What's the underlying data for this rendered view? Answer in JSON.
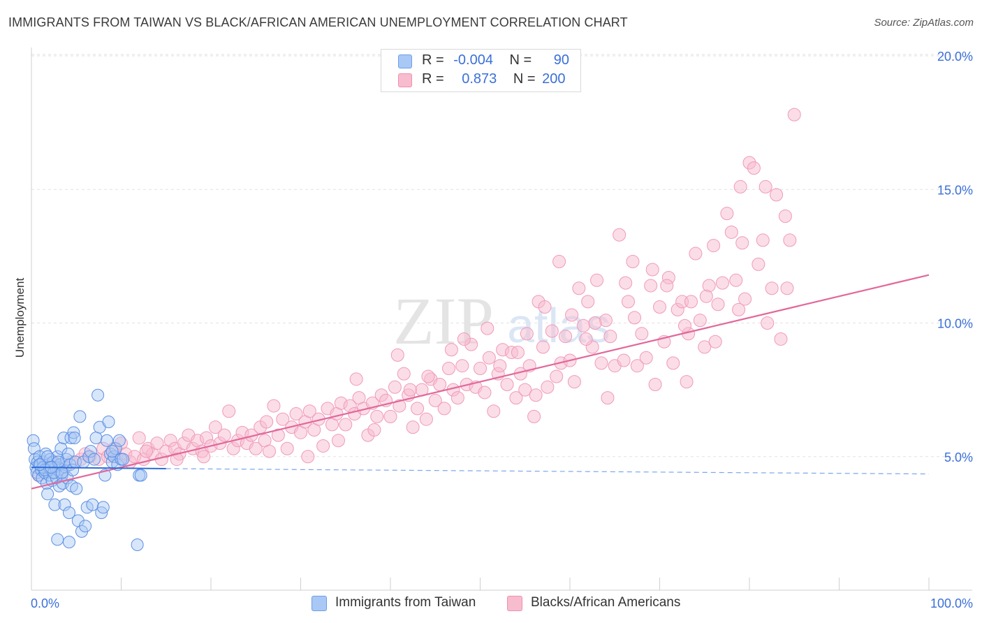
{
  "header": {
    "title": "IMMIGRANTS FROM TAIWAN VS BLACK/AFRICAN AMERICAN UNEMPLOYMENT CORRELATION CHART",
    "source": "Source: ZipAtlas.com"
  },
  "watermark": {
    "zip": "ZIP",
    "atlas": "atlas"
  },
  "stats_legend": {
    "rows": [
      {
        "r_label": "R =",
        "r_value": "-0.004",
        "n_label": "N =",
        "n_value": "90",
        "color": "#a9c8f5"
      },
      {
        "r_label": "R =",
        "r_value": "0.873",
        "n_label": "N =",
        "n_value": "200",
        "color": "#f8bccf"
      }
    ]
  },
  "bottom_legend": [
    {
      "label": "Immigrants from Taiwan",
      "color": "#a9c8f5"
    },
    {
      "label": "Blacks/African Americans",
      "color": "#f8bccf"
    }
  ],
  "chart_data": {
    "type": "scatter",
    "title": "IMMIGRANTS FROM TAIWAN VS BLACK/AFRICAN AMERICAN UNEMPLOYMENT CORRELATION CHART",
    "xlabel": "",
    "ylabel": "Unemployment",
    "xlim": [
      0,
      100
    ],
    "ylim": [
      0,
      20
    ],
    "x_tick_labels": [
      "0.0%",
      "100.0%"
    ],
    "y_tick_labels": [
      "5.0%",
      "10.0%",
      "15.0%",
      "20.0%"
    ],
    "y_ticks": [
      5,
      10,
      15,
      20
    ],
    "grid": "horizontal dashed",
    "legend_position": "top-center",
    "colors": {
      "taiwan": "#4a86e8",
      "black": "#e8749c"
    },
    "series": [
      {
        "name": "Immigrants from Taiwan",
        "r": -0.004,
        "n": 90,
        "trend": {
          "x": [
            0,
            15
          ],
          "y": [
            4.6,
            4.55
          ]
        },
        "trend_dashed": {
          "x": [
            15,
            100
          ],
          "y": [
            4.55,
            4.35
          ]
        },
        "points": [
          [
            0.2,
            5.6
          ],
          [
            0.3,
            5.3
          ],
          [
            0.4,
            4.9
          ],
          [
            0.5,
            4.6
          ],
          [
            0.6,
            4.4
          ],
          [
            0.7,
            4.8
          ],
          [
            0.8,
            4.3
          ],
          [
            0.9,
            5.0
          ],
          [
            1.0,
            4.7
          ],
          [
            1.1,
            4.5
          ],
          [
            1.2,
            4.2
          ],
          [
            1.3,
            4.8
          ],
          [
            1.4,
            4.6
          ],
          [
            1.5,
            4.4
          ],
          [
            1.6,
            5.1
          ],
          [
            1.7,
            4.0
          ],
          [
            1.8,
            3.6
          ],
          [
            1.9,
            4.7
          ],
          [
            2.0,
            4.3
          ],
          [
            2.1,
            4.9
          ],
          [
            2.2,
            4.5
          ],
          [
            2.3,
            4.1
          ],
          [
            2.4,
            4.8
          ],
          [
            2.5,
            4.4
          ],
          [
            2.6,
            3.2
          ],
          [
            2.7,
            4.6
          ],
          [
            2.8,
            4.2
          ],
          [
            2.9,
            5.0
          ],
          [
            3.0,
            4.5
          ],
          [
            3.1,
            3.9
          ],
          [
            3.2,
            4.7
          ],
          [
            3.3,
            5.3
          ],
          [
            3.4,
            4.3
          ],
          [
            3.5,
            4.0
          ],
          [
            3.6,
            5.7
          ],
          [
            3.7,
            3.2
          ],
          [
            3.8,
            4.6
          ],
          [
            3.9,
            4.9
          ],
          [
            4.0,
            4.2
          ],
          [
            4.1,
            5.1
          ],
          [
            4.2,
            2.9
          ],
          [
            4.3,
            4.7
          ],
          [
            4.4,
            5.7
          ],
          [
            4.5,
            3.9
          ],
          [
            4.6,
            4.5
          ],
          [
            4.7,
            5.9
          ],
          [
            4.8,
            5.7
          ],
          [
            4.9,
            4.8
          ],
          [
            5.0,
            3.8
          ],
          [
            5.2,
            2.6
          ],
          [
            5.4,
            6.5
          ],
          [
            5.6,
            2.2
          ],
          [
            5.8,
            4.8
          ],
          [
            6.0,
            2.4
          ],
          [
            6.2,
            3.1
          ],
          [
            6.4,
            5.0
          ],
          [
            6.6,
            5.2
          ],
          [
            6.8,
            3.2
          ],
          [
            7.0,
            4.9
          ],
          [
            7.2,
            5.7
          ],
          [
            7.4,
            7.3
          ],
          [
            7.6,
            6.1
          ],
          [
            7.8,
            2.9
          ],
          [
            8.0,
            3.1
          ],
          [
            8.2,
            4.3
          ],
          [
            8.4,
            5.6
          ],
          [
            8.6,
            6.3
          ],
          [
            8.8,
            5.1
          ],
          [
            9.0,
            4.8
          ],
          [
            9.2,
            5.0
          ],
          [
            9.4,
            5.3
          ],
          [
            9.6,
            4.7
          ],
          [
            9.8,
            5.6
          ],
          [
            10.0,
            4.9
          ],
          [
            2.9,
            1.9
          ],
          [
            4.2,
            1.8
          ],
          [
            11.8,
            1.7
          ],
          [
            12.0,
            4.3
          ],
          [
            12.2,
            4.3
          ],
          [
            9.0,
            5.2
          ],
          [
            1.3,
            4.6
          ],
          [
            2.0,
            4.6
          ],
          [
            3.0,
            4.8
          ],
          [
            1.5,
            4.5
          ],
          [
            2.5,
            4.4
          ],
          [
            0.9,
            4.7
          ],
          [
            1.8,
            5.0
          ],
          [
            3.4,
            4.4
          ],
          [
            2.2,
            4.6
          ],
          [
            10.2,
            4.9
          ]
        ]
      },
      {
        "name": "Blacks/African Americans",
        "r": 0.873,
        "n": 200,
        "trend": {
          "x": [
            0,
            100
          ],
          "y": [
            3.8,
            11.8
          ]
        },
        "points": [
          [
            0.8,
            4.3
          ],
          [
            1.5,
            4.6
          ],
          [
            2.5,
            4.8
          ],
          [
            3.5,
            4.5
          ],
          [
            4.5,
            4.8
          ],
          [
            5.5,
            4.9
          ],
          [
            6.0,
            5.1
          ],
          [
            6.5,
            5.0
          ],
          [
            7.5,
            4.9
          ],
          [
            8.0,
            5.3
          ],
          [
            8.5,
            5.0
          ],
          [
            9.5,
            5.0
          ],
          [
            10.0,
            5.5
          ],
          [
            10.5,
            5.1
          ],
          [
            11.0,
            4.8
          ],
          [
            11.5,
            5.0
          ],
          [
            12.0,
            5.7
          ],
          [
            12.5,
            4.9
          ],
          [
            13.0,
            5.3
          ],
          [
            13.5,
            5.1
          ],
          [
            14.0,
            5.5
          ],
          [
            14.5,
            4.9
          ],
          [
            15.0,
            5.2
          ],
          [
            15.5,
            5.6
          ],
          [
            16.0,
            5.3
          ],
          [
            16.5,
            5.1
          ],
          [
            17.0,
            5.5
          ],
          [
            17.5,
            5.8
          ],
          [
            18.0,
            5.3
          ],
          [
            18.5,
            5.6
          ],
          [
            19.0,
            5.2
          ],
          [
            19.5,
            5.7
          ],
          [
            20.0,
            5.4
          ],
          [
            20.5,
            6.1
          ],
          [
            21.0,
            5.5
          ],
          [
            21.5,
            5.8
          ],
          [
            22.0,
            6.7
          ],
          [
            22.5,
            5.3
          ],
          [
            23.0,
            5.6
          ],
          [
            23.5,
            5.9
          ],
          [
            24.0,
            5.5
          ],
          [
            24.5,
            5.8
          ],
          [
            25.0,
            5.3
          ],
          [
            25.5,
            6.1
          ],
          [
            26.0,
            5.6
          ],
          [
            26.5,
            5.2
          ],
          [
            27.0,
            6.9
          ],
          [
            27.5,
            5.8
          ],
          [
            28.0,
            6.4
          ],
          [
            28.5,
            5.3
          ],
          [
            29.0,
            6.1
          ],
          [
            29.5,
            6.6
          ],
          [
            30.0,
            5.9
          ],
          [
            30.5,
            6.3
          ],
          [
            31.0,
            6.7
          ],
          [
            31.5,
            6.0
          ],
          [
            32.0,
            6.4
          ],
          [
            32.5,
            5.4
          ],
          [
            33.0,
            6.8
          ],
          [
            33.5,
            6.2
          ],
          [
            34.0,
            6.6
          ],
          [
            34.5,
            7.0
          ],
          [
            35.0,
            6.2
          ],
          [
            35.5,
            6.9
          ],
          [
            36.0,
            6.6
          ],
          [
            36.5,
            7.2
          ],
          [
            37.0,
            6.8
          ],
          [
            37.5,
            5.8
          ],
          [
            38.0,
            7.0
          ],
          [
            38.5,
            6.5
          ],
          [
            39.0,
            7.3
          ],
          [
            39.5,
            7.1
          ],
          [
            40.0,
            6.5
          ],
          [
            40.5,
            7.6
          ],
          [
            41.0,
            6.9
          ],
          [
            41.5,
            8.1
          ],
          [
            42.0,
            7.3
          ],
          [
            42.5,
            6.1
          ],
          [
            43.0,
            6.8
          ],
          [
            43.5,
            7.5
          ],
          [
            44.0,
            6.4
          ],
          [
            44.5,
            7.9
          ],
          [
            45.0,
            7.1
          ],
          [
            45.5,
            7.7
          ],
          [
            46.0,
            6.8
          ],
          [
            46.5,
            8.3
          ],
          [
            47.0,
            7.5
          ],
          [
            47.5,
            7.2
          ],
          [
            48.0,
            8.4
          ],
          [
            48.5,
            7.7
          ],
          [
            49.0,
            9.2
          ],
          [
            49.5,
            7.6
          ],
          [
            50.0,
            8.3
          ],
          [
            50.5,
            7.4
          ],
          [
            51.0,
            8.7
          ],
          [
            51.5,
            6.7
          ],
          [
            52.0,
            8.1
          ],
          [
            52.5,
            9.0
          ],
          [
            53.0,
            7.7
          ],
          [
            53.5,
            8.9
          ],
          [
            54.0,
            7.2
          ],
          [
            54.5,
            8.1
          ],
          [
            55.0,
            7.5
          ],
          [
            55.5,
            8.4
          ],
          [
            56.0,
            6.5
          ],
          [
            56.5,
            10.8
          ],
          [
            57.0,
            9.1
          ],
          [
            57.5,
            7.6
          ],
          [
            58.0,
            9.7
          ],
          [
            58.5,
            8.0
          ],
          [
            59.0,
            8.5
          ],
          [
            59.5,
            9.5
          ],
          [
            60.0,
            8.6
          ],
          [
            60.5,
            7.8
          ],
          [
            61.0,
            11.3
          ],
          [
            61.5,
            9.9
          ],
          [
            62.0,
            10.8
          ],
          [
            62.5,
            9.1
          ],
          [
            63.0,
            11.6
          ],
          [
            63.5,
            8.5
          ],
          [
            64.0,
            10.1
          ],
          [
            64.5,
            9.5
          ],
          [
            65.0,
            8.4
          ],
          [
            65.5,
            13.3
          ],
          [
            66.0,
            8.6
          ],
          [
            66.5,
            10.8
          ],
          [
            67.0,
            12.3
          ],
          [
            67.5,
            8.4
          ],
          [
            68.0,
            9.6
          ],
          [
            68.5,
            8.7
          ],
          [
            69.0,
            11.4
          ],
          [
            69.5,
            7.7
          ],
          [
            70.0,
            10.6
          ],
          [
            70.5,
            9.3
          ],
          [
            71.0,
            11.7
          ],
          [
            71.5,
            8.5
          ],
          [
            72.0,
            10.5
          ],
          [
            72.5,
            10.8
          ],
          [
            73.0,
            7.8
          ],
          [
            73.5,
            10.8
          ],
          [
            74.0,
            12.6
          ],
          [
            74.5,
            10.1
          ],
          [
            75.0,
            9.1
          ],
          [
            75.5,
            11.4
          ],
          [
            76.0,
            12.9
          ],
          [
            76.5,
            10.7
          ],
          [
            77.0,
            11.5
          ],
          [
            77.5,
            14.1
          ],
          [
            78.0,
            13.4
          ],
          [
            78.5,
            11.6
          ],
          [
            79.0,
            15.1
          ],
          [
            79.5,
            10.9
          ],
          [
            80.0,
            16.0
          ],
          [
            80.5,
            15.8
          ],
          [
            81.0,
            12.2
          ],
          [
            81.5,
            13.1
          ],
          [
            82.0,
            10.0
          ],
          [
            82.5,
            11.3
          ],
          [
            83.0,
            14.8
          ],
          [
            83.5,
            9.4
          ],
          [
            84.0,
            14.0
          ],
          [
            84.5,
            13.1
          ],
          [
            85.0,
            17.8
          ],
          [
            60.2,
            10.3
          ],
          [
            70.8,
            11.4
          ],
          [
            64.2,
            7.2
          ],
          [
            55.2,
            9.6
          ],
          [
            44.2,
            8.0
          ],
          [
            38.2,
            6.0
          ],
          [
            30.8,
            5.0
          ],
          [
            50.8,
            9.8
          ],
          [
            46.8,
            9.0
          ],
          [
            56.2,
            7.3
          ],
          [
            62.8,
            10.0
          ],
          [
            76.2,
            9.3
          ],
          [
            69.2,
            12.0
          ],
          [
            78.8,
            10.5
          ],
          [
            66.2,
            11.5
          ],
          [
            73.2,
            9.6
          ],
          [
            58.8,
            12.3
          ],
          [
            52.2,
            8.4
          ],
          [
            48.2,
            9.4
          ],
          [
            42.2,
            7.5
          ],
          [
            36.2,
            7.9
          ],
          [
            34.2,
            5.6
          ],
          [
            26.2,
            6.3
          ],
          [
            19.2,
            5.0
          ],
          [
            16.2,
            4.9
          ],
          [
            12.8,
            5.2
          ],
          [
            9.2,
            5.3
          ],
          [
            40.8,
            8.8
          ],
          [
            54.2,
            8.9
          ],
          [
            57.2,
            10.6
          ],
          [
            61.8,
            9.4
          ],
          [
            67.2,
            10.2
          ],
          [
            72.8,
            9.9
          ],
          [
            75.2,
            11.0
          ],
          [
            79.2,
            13.0
          ],
          [
            81.8,
            15.1
          ],
          [
            84.2,
            11.3
          ]
        ]
      }
    ]
  }
}
